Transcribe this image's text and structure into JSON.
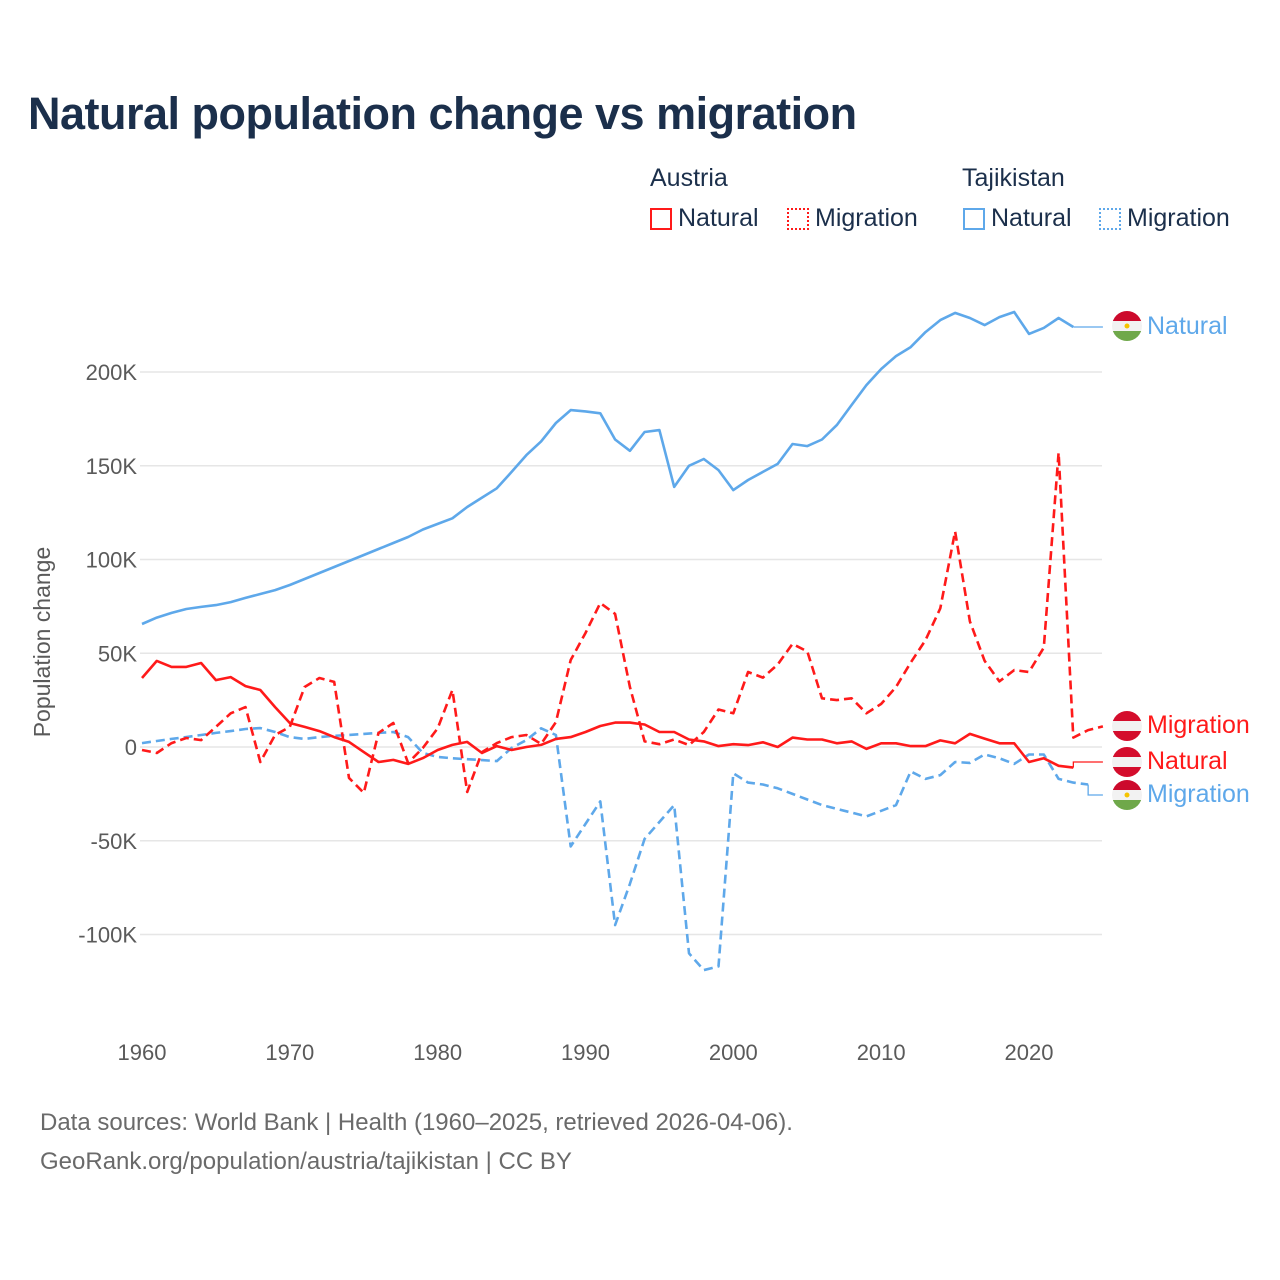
{
  "title": "Natural population change vs migration",
  "legend": {
    "groups": [
      {
        "country": "Austria",
        "items": [
          "Natural",
          "Migration"
        ]
      },
      {
        "country": "Tajikistan",
        "items": [
          "Natural",
          "Migration"
        ]
      }
    ]
  },
  "colors": {
    "austria": "#ff1a1a",
    "tajikistan": "#5ea8ea",
    "grid": "#e6e6e6"
  },
  "end_labels": {
    "tajikistan_natural": "Natural",
    "austria_migration": "Migration",
    "austria_natural": "Natural",
    "tajikistan_migration": "Migration"
  },
  "source": {
    "line1": "Data sources: World Bank | Health (1960–2025, retrieved 2026-04-06).",
    "line2": "GeoRank.org/population/austria/tajikistan | CC BY"
  },
  "chart_data": {
    "type": "line",
    "title": "Natural population change vs migration",
    "xlabel": "",
    "ylabel": "Population change",
    "xlim": [
      1960,
      2025
    ],
    "ylim": [
      -140000,
      240000
    ],
    "x_ticks": [
      1960,
      1970,
      1980,
      1990,
      2000,
      2010,
      2020
    ],
    "x_tick_labels": [
      "1960",
      "1970",
      "1980",
      "1990",
      "2000",
      "2010",
      "2020"
    ],
    "y_ticks": [
      -100000,
      -50000,
      0,
      50000,
      100000,
      150000,
      200000
    ],
    "y_tick_labels": [
      "-100K",
      "-50K",
      "0",
      "50K",
      "100K",
      "150K",
      "200K"
    ],
    "grid": true,
    "legend_position": "top-right",
    "start_year": 1960,
    "series": [
      {
        "name": "Tajikistan Natural",
        "country": "Tajikistan",
        "kind": "Natural",
        "style": "solid",
        "color": "#5ea8ea",
        "values": [
          65600,
          69000,
          71500,
          73600,
          74700,
          75700,
          77300,
          79500,
          81600,
          83700,
          86400,
          89600,
          92800,
          96000,
          99200,
          102400,
          105600,
          108800,
          112000,
          116000,
          119000,
          122000,
          128000,
          133000,
          138000,
          146700,
          155700,
          163000,
          172800,
          179700,
          179000,
          178000,
          164000,
          158000,
          168000,
          169000,
          138700,
          150000,
          153600,
          147700,
          137000,
          142400,
          146700,
          151000,
          161600,
          160500,
          164000,
          171700,
          182400,
          193000,
          201600,
          208500,
          213300,
          221300,
          227700,
          231500,
          228800,
          225000,
          229300,
          232000,
          220300,
          223500,
          228800,
          224000
        ],
        "extend_to": 2025,
        "extend_value": 224000
      },
      {
        "name": "Tajikistan Migration",
        "country": "Tajikistan",
        "kind": "Migration",
        "style": "dashed",
        "color": "#5ea8ea",
        "values": [
          2100,
          3200,
          4300,
          5300,
          6400,
          7500,
          8500,
          9600,
          10100,
          8000,
          5300,
          4300,
          5300,
          6000,
          6400,
          7000,
          7500,
          8000,
          5300,
          -3200,
          -5300,
          -6000,
          -6500,
          -7000,
          -7500,
          -500,
          3700,
          10000,
          6400,
          -53000,
          -41000,
          -29000,
          -95000,
          -73000,
          -49000,
          -40000,
          -31000,
          -110000,
          -119000,
          -117000,
          -14000,
          -19000,
          -20000,
          -22000,
          -25000,
          -28000,
          -31000,
          -33000,
          -35000,
          -37000,
          -34000,
          -31000,
          -13000,
          -17000,
          -15000,
          -8000,
          -8500,
          -4000,
          -6000,
          -9000,
          -4000,
          -4000,
          -17000,
          -19000,
          -20000
        ],
        "extend_to": 2025,
        "extend_value": -25600
      },
      {
        "name": "Austria Natural",
        "country": "Austria",
        "kind": "Natural",
        "style": "solid",
        "color": "#ff1a1a",
        "values": [
          36800,
          45900,
          42700,
          42700,
          44800,
          35700,
          37300,
          32500,
          30400,
          21300,
          12800,
          10700,
          8500,
          5300,
          2700,
          -2700,
          -8000,
          -6900,
          -9000,
          -5900,
          -1600,
          1100,
          2700,
          -3200,
          500,
          -1600,
          0,
          1100,
          4300,
          5300,
          8000,
          11200,
          13000,
          13000,
          12000,
          8000,
          8000,
          4000,
          3000,
          500,
          1500,
          1000,
          2500,
          0,
          5000,
          4000,
          4000,
          2000,
          3000,
          -1000,
          2000,
          2000,
          500,
          500,
          3500,
          2000,
          7000,
          4500,
          2000,
          2000,
          -8000,
          -6000,
          -10000,
          -11000
        ],
        "extend_to": 2025,
        "extend_value": -8000
      },
      {
        "name": "Austria Migration",
        "country": "Austria",
        "kind": "Migration",
        "style": "dashed",
        "color": "#ff1a1a",
        "values": [
          -1600,
          -3200,
          2100,
          4800,
          3700,
          10700,
          18000,
          21300,
          -8000,
          6400,
          10700,
          32000,
          36800,
          34700,
          -16500,
          -24500,
          7500,
          12800,
          -8500,
          -500,
          10000,
          30400,
          -24000,
          -2700,
          2100,
          5300,
          6400,
          1600,
          13300,
          46400,
          60800,
          76800,
          71000,
          32000,
          3000,
          1500,
          4000,
          1000,
          8000,
          20000,
          18000,
          40000,
          37000,
          44000,
          55000,
          51000,
          26000,
          25000,
          26000,
          18000,
          23000,
          32000,
          45000,
          57000,
          74000,
          115000,
          67000,
          46000,
          35000,
          41000,
          40000,
          53000,
          157000,
          5000,
          9000,
          11000
        ]
      }
    ]
  }
}
